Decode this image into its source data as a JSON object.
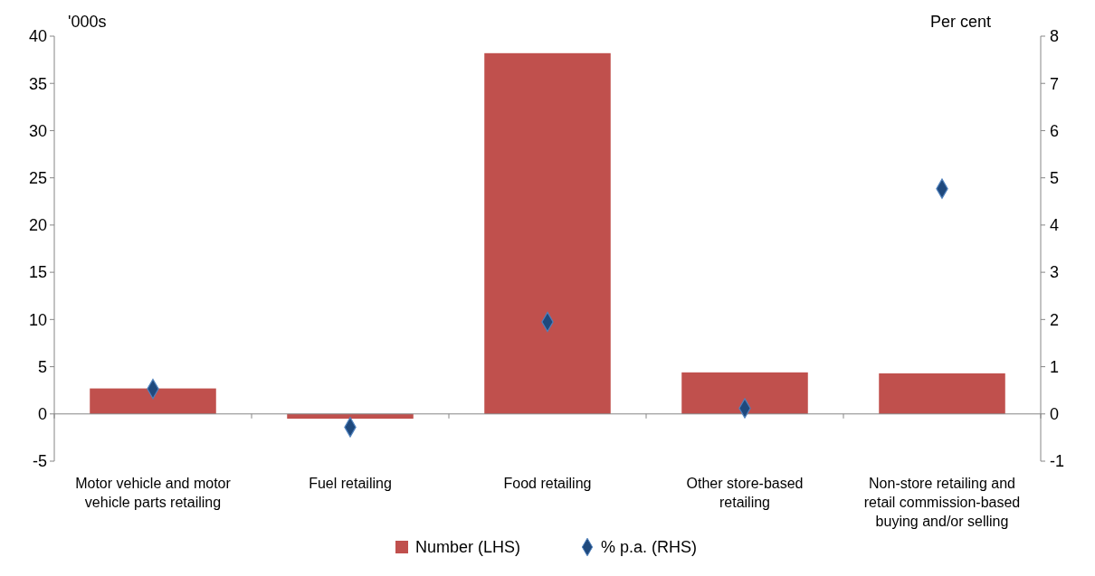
{
  "chart_data": {
    "type": "bar",
    "categories": [
      "Motor vehicle and motor vehicle parts retailing",
      "Fuel retailing",
      "Food retailing",
      "Other store-based retailing",
      "Non-store retailing and retail commission-based buying and/or selling"
    ],
    "series": [
      {
        "name": "Number (LHS)",
        "color": "#c0504d",
        "values": [
          2.7,
          -0.5,
          38.2,
          4.4,
          4.3
        ]
      },
      {
        "name": "% p.a. (RHS)",
        "type": "scatter",
        "axis": "y2",
        "marker": "diamond",
        "color": "#1f497d",
        "x": [
          "Motor vehicle and motor vehicle parts retailing",
          "Fuel retailing",
          "Food retailing",
          "Other store-based retailing",
          "Non-store retailing and retail commission-based buying and/or selling"
        ],
        "values": [
          0.53,
          -0.28,
          1.95,
          0.12,
          4.77
        ]
      }
    ],
    "ylabel": "'000s",
    "y2label": "Per cent",
    "ylim": [
      -5,
      40
    ],
    "yticks": [
      -5,
      0,
      5,
      10,
      15,
      20,
      25,
      30,
      35,
      40
    ],
    "y2lim": [
      -1,
      8
    ],
    "y2ticks": [
      -1,
      0,
      1,
      2,
      3,
      4,
      5,
      6,
      7,
      8
    ],
    "legend": "bottom"
  }
}
